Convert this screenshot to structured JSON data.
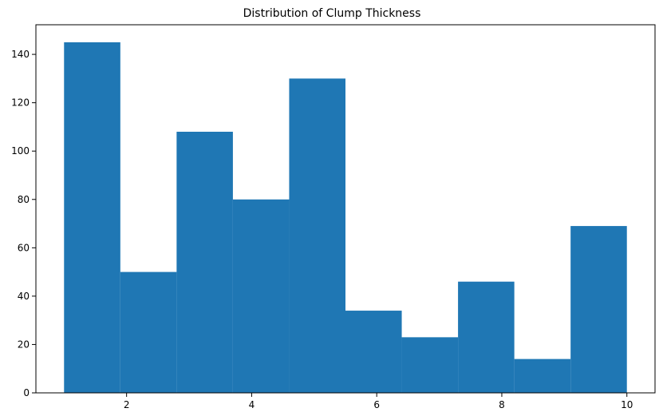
{
  "chart_data": {
    "type": "histogram",
    "title": "Distribution of Clump Thickness",
    "xlabel": "",
    "ylabel": "",
    "xlim": [
      0.55,
      10.45
    ],
    "ylim": [
      0,
      152.25
    ],
    "x_ticks": [
      2,
      4,
      6,
      8,
      10
    ],
    "y_ticks": [
      0,
      20,
      40,
      60,
      80,
      100,
      120,
      140
    ],
    "bins": [
      {
        "start": 1.0,
        "end": 1.9,
        "count": 145
      },
      {
        "start": 1.9,
        "end": 2.8,
        "count": 50
      },
      {
        "start": 2.8,
        "end": 3.7,
        "count": 108
      },
      {
        "start": 3.7,
        "end": 4.6,
        "count": 80
      },
      {
        "start": 4.6,
        "end": 5.5,
        "count": 130
      },
      {
        "start": 5.5,
        "end": 6.4,
        "count": 34
      },
      {
        "start": 6.4,
        "end": 7.3,
        "count": 23
      },
      {
        "start": 7.3,
        "end": 8.2,
        "count": 46
      },
      {
        "start": 8.2,
        "end": 9.1,
        "count": 14
      },
      {
        "start": 9.1,
        "end": 10.0,
        "count": 69
      }
    ],
    "bar_color": "#1f77b4",
    "grid": false,
    "legend": "none"
  }
}
